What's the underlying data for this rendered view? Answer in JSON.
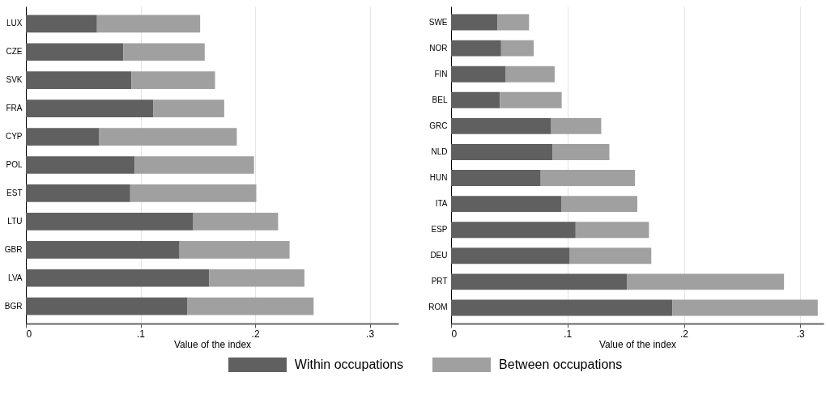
{
  "chart_data": [
    {
      "type": "bar",
      "orientation": "horizontal",
      "stacked": true,
      "xlabel": "Value of the index",
      "categories": [
        "LUX",
        "CZE",
        "SVK",
        "FRA",
        "CYP",
        "POL",
        "EST",
        "LTU",
        "GBR",
        "LVA",
        "BGR"
      ],
      "series": [
        {
          "name": "Within occupations",
          "color": "#606060",
          "values": [
            0.062,
            0.085,
            0.092,
            0.111,
            0.064,
            0.095,
            0.091,
            0.146,
            0.134,
            0.16,
            0.141
          ]
        },
        {
          "name": "Between occupations",
          "color": "#a0a0a0",
          "values": [
            0.09,
            0.071,
            0.073,
            0.062,
            0.12,
            0.104,
            0.11,
            0.074,
            0.096,
            0.083,
            0.11
          ]
        }
      ],
      "xlim": [
        0,
        0.325
      ],
      "xticks": [
        0,
        {
          "value": 0.1,
          "label": ".1"
        },
        {
          "value": 0.2,
          "label": ".2"
        },
        {
          "value": 0.3,
          "label": ".3"
        }
      ],
      "grid": "x",
      "legend": "bottom"
    },
    {
      "type": "bar",
      "orientation": "horizontal",
      "stacked": true,
      "xlabel": "Value of the index",
      "categories": [
        "SWE",
        "NOR",
        "FIN",
        "BEL",
        "GRC",
        "NLD",
        "HUN",
        "ITA",
        "ESP",
        "DEU",
        "PRT",
        "ROM"
      ],
      "series": [
        {
          "name": "Within occupations",
          "color": "#606060",
          "values": [
            0.04,
            0.043,
            0.047,
            0.042,
            0.086,
            0.087,
            0.077,
            0.095,
            0.107,
            0.102,
            0.151,
            0.19
          ]
        },
        {
          "name": "Between occupations",
          "color": "#a0a0a0",
          "values": [
            0.027,
            0.028,
            0.042,
            0.053,
            0.043,
            0.049,
            0.081,
            0.065,
            0.063,
            0.07,
            0.135,
            0.125
          ]
        }
      ],
      "xlim": [
        0,
        0.32
      ],
      "xticks": [
        0,
        {
          "value": 0.1,
          "label": ".1"
        },
        {
          "value": 0.2,
          "label": ".2"
        },
        {
          "value": 0.3,
          "label": ".3"
        }
      ],
      "grid": "x",
      "legend": "bottom"
    }
  ]
}
